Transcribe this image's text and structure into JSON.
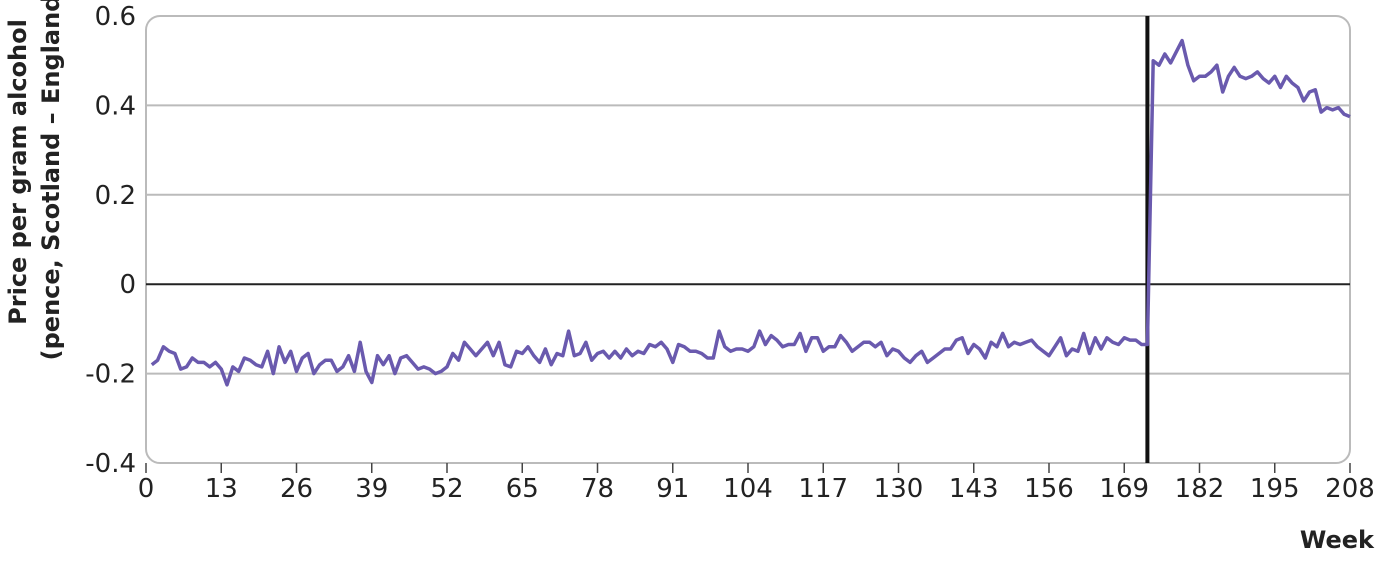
{
  "chart_data": {
    "type": "line",
    "title": "",
    "xlabel": "Week",
    "ylabel_line1": "Price per gram alcohol",
    "ylabel_line2": "(pence, Scotland – England)",
    "xlim": [
      0,
      208
    ],
    "ylim": [
      -0.4,
      0.6
    ],
    "x_ticks": [
      0,
      13,
      26,
      39,
      52,
      65,
      78,
      91,
      104,
      117,
      130,
      143,
      156,
      169,
      182,
      195,
      208
    ],
    "y_ticks": [
      -0.4,
      -0.2,
      0,
      0.2,
      0.4,
      0.6
    ],
    "y_tick_labels": [
      "-0.4",
      "-0.2",
      "0",
      "0.2",
      "0.4",
      "0.6"
    ],
    "grid": "horizontal",
    "intervention_week": 173,
    "colors": {
      "series": "#6a5aae",
      "grid": "#bbbbbb",
      "zero_line": "#222222",
      "intervention": "#111111",
      "frame": "#bbbbbb"
    },
    "series": [
      {
        "values": [
          -0.18,
          -0.17,
          -0.14,
          -0.15,
          -0.155,
          -0.19,
          -0.185,
          -0.165,
          -0.175,
          -0.175,
          -0.185,
          -0.175,
          -0.19,
          -0.225,
          -0.185,
          -0.195,
          -0.165,
          -0.17,
          -0.18,
          -0.185,
          -0.15,
          -0.2,
          -0.14,
          -0.175,
          -0.15,
          -0.195,
          -0.165,
          -0.155,
          -0.2,
          -0.18,
          -0.17,
          -0.17,
          -0.195,
          -0.185,
          -0.16,
          -0.195,
          -0.13,
          -0.195,
          -0.22,
          -0.16,
          -0.18,
          -0.16,
          -0.2,
          -0.165,
          -0.16,
          -0.175,
          -0.19,
          -0.185,
          -0.19,
          -0.2,
          -0.195,
          -0.185,
          -0.155,
          -0.17,
          -0.13,
          -0.145,
          -0.16,
          -0.145,
          -0.13,
          -0.16,
          -0.13,
          -0.18,
          -0.185,
          -0.15,
          -0.155,
          -0.14,
          -0.16,
          -0.175,
          -0.145,
          -0.18,
          -0.155,
          -0.16,
          -0.105,
          -0.16,
          -0.155,
          -0.13,
          -0.17,
          -0.155,
          -0.15,
          -0.165,
          -0.15,
          -0.165,
          -0.145,
          -0.16,
          -0.15,
          -0.155,
          -0.135,
          -0.14,
          -0.13,
          -0.145,
          -0.175,
          -0.135,
          -0.14,
          -0.15,
          -0.15,
          -0.155,
          -0.165,
          -0.165,
          -0.105,
          -0.14,
          -0.15,
          -0.145,
          -0.145,
          -0.15,
          -0.14,
          -0.105,
          -0.135,
          -0.115,
          -0.125,
          -0.14,
          -0.135,
          -0.135,
          -0.11,
          -0.15,
          -0.12,
          -0.12,
          -0.15,
          -0.14,
          -0.14,
          -0.115,
          -0.13,
          -0.15,
          -0.14,
          -0.13,
          -0.13,
          -0.14,
          -0.13,
          -0.16,
          -0.145,
          -0.15,
          -0.165,
          -0.175,
          -0.16,
          -0.15,
          -0.175,
          -0.165,
          -0.155,
          -0.145,
          -0.145,
          -0.125,
          -0.12,
          -0.155,
          -0.135,
          -0.145,
          -0.165,
          -0.13,
          -0.14,
          -0.11,
          -0.14,
          -0.13,
          -0.135,
          -0.13,
          -0.125,
          -0.14,
          -0.15,
          -0.16,
          -0.14,
          -0.12,
          -0.16,
          -0.145,
          -0.15,
          -0.11,
          -0.155,
          -0.12,
          -0.145,
          -0.12,
          -0.13,
          -0.135,
          -0.12,
          -0.125,
          -0.125,
          -0.135,
          -0.135,
          0.5,
          0.49,
          0.515,
          0.495,
          0.52,
          0.545,
          0.49,
          0.455,
          0.465,
          0.465,
          0.475,
          0.49,
          0.43,
          0.465,
          0.485,
          0.465,
          0.46,
          0.465,
          0.475,
          0.46,
          0.45,
          0.465,
          0.44,
          0.465,
          0.45,
          0.44,
          0.41,
          0.43,
          0.435,
          0.385,
          0.395,
          0.39,
          0.395,
          0.38,
          0.375
        ]
      }
    ]
  }
}
